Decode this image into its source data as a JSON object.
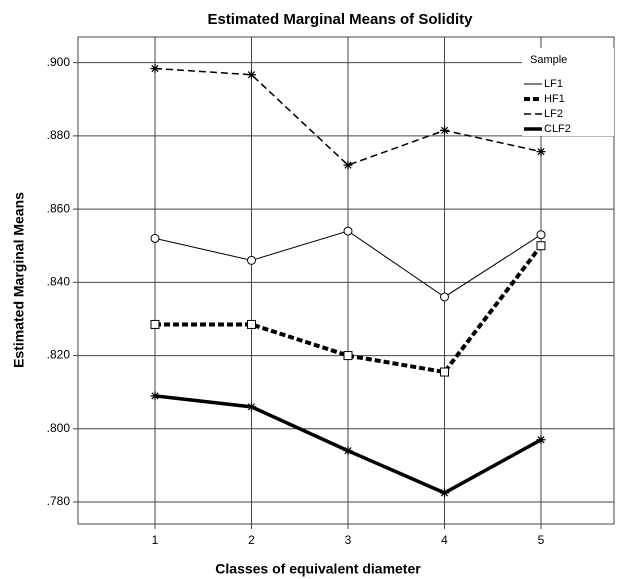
{
  "chart_data": {
    "type": "line",
    "title": "Estimated Marginal Means of Solidity",
    "x_label": "Classes of equivalent diameter",
    "y_label": "Estimated Marginal Means",
    "legend_title": "Sample",
    "legend": "upper right",
    "grid": true,
    "categories": [
      "1",
      "2",
      "3",
      "4",
      "5"
    ],
    "ylim": [
      0.774,
      0.907
    ],
    "yticks": [
      {
        "value": 0.78,
        "label": ".780"
      },
      {
        "value": 0.8,
        "label": ".800"
      },
      {
        "value": 0.82,
        "label": ".820"
      },
      {
        "value": 0.84,
        "label": ".840"
      },
      {
        "value": 0.86,
        "label": ".860"
      },
      {
        "value": 0.88,
        "label": ".880"
      },
      {
        "value": 0.9,
        "label": ".900"
      }
    ],
    "series": [
      {
        "name": "LF1",
        "color": "#000000",
        "style": "solid",
        "width": 1,
        "marker": "circle",
        "values": [
          0.852,
          0.846,
          0.854,
          0.836,
          0.853
        ]
      },
      {
        "name": "HF1",
        "color": "#000000",
        "style": "dashed",
        "width": 4,
        "marker": "square",
        "values": [
          0.8285,
          0.8285,
          0.82,
          0.8155,
          0.85
        ]
      },
      {
        "name": "LF2",
        "color": "#000000",
        "style": "dashed",
        "width": 1.5,
        "marker": "star",
        "values": [
          0.8984,
          0.8967,
          0.872,
          0.8815,
          0.8757
        ]
      },
      {
        "name": "CLF2",
        "color": "#000000",
        "style": "solid",
        "width": 3.5,
        "marker": "star",
        "values": [
          0.809,
          0.806,
          0.794,
          0.7825,
          0.797
        ]
      }
    ]
  }
}
